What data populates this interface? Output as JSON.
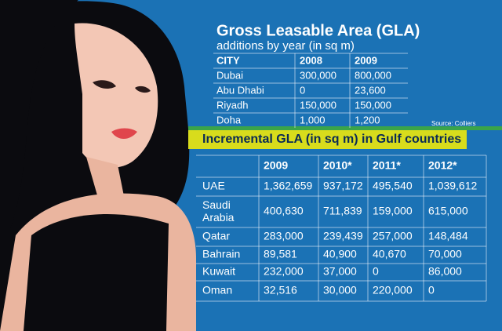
{
  "table1": {
    "title": "Gross Leasable Area (GLA)",
    "subtitle": "additions by year (in sq m)",
    "header": [
      "CITY",
      "2008",
      "2009"
    ],
    "rows": [
      [
        "Dubai",
        "300,000",
        "800,000"
      ],
      [
        "Abu Dhabi",
        "0",
        "23,600"
      ],
      [
        "Riyadh",
        "150,000",
        "150,000"
      ],
      [
        "Doha",
        "1,000",
        "1,200"
      ]
    ],
    "source": "Source: Colliers"
  },
  "table2": {
    "title": "Incremental GLA (in sq m) in Gulf countries",
    "header": [
      "2009",
      "2010*",
      "2011*",
      "2012*"
    ],
    "rows": [
      [
        "UAE",
        "1,362,659",
        "937,172",
        "495,540",
        "1,039,612"
      ],
      [
        "Saudi Arabia",
        "400,630",
        "711,839",
        "159,000",
        "615,000"
      ],
      [
        "Qatar",
        "283,000",
        "239,439",
        "257,000",
        "148,484"
      ],
      [
        "Bahrain",
        "89,581",
        "40,900",
        "40,670",
        "70,000"
      ],
      [
        "Kuwait",
        "232,000",
        "37,000",
        "0",
        "86,000"
      ],
      [
        "Oman",
        "32,516",
        "30,000",
        "220,000",
        "0"
      ]
    ]
  }
}
